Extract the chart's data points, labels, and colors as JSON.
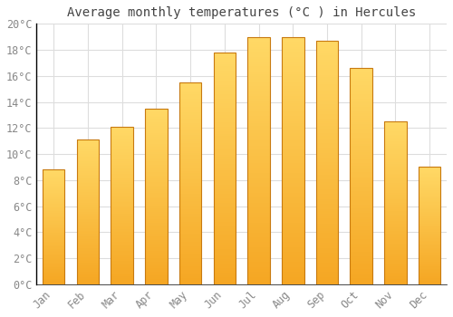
{
  "title": "Average monthly temperatures (°C ) in Hercules",
  "months": [
    "Jan",
    "Feb",
    "Mar",
    "Apr",
    "May",
    "Jun",
    "Jul",
    "Aug",
    "Sep",
    "Oct",
    "Nov",
    "Dec"
  ],
  "values": [
    8.8,
    11.1,
    12.1,
    13.5,
    15.5,
    17.8,
    19.0,
    19.0,
    18.7,
    16.6,
    12.5,
    9.0
  ],
  "bar_color_bottom": "#F5A623",
  "bar_color_top": "#FFD966",
  "bar_edge_color": "#C87A10",
  "background_color": "#FFFFFF",
  "plot_bg_color": "#FFFFFF",
  "grid_color": "#DDDDDD",
  "tick_label_color": "#888888",
  "title_color": "#444444",
  "axis_color": "#000000",
  "ylim": [
    0,
    20
  ],
  "ytick_step": 2,
  "title_fontsize": 10,
  "tick_fontsize": 8.5,
  "bar_width": 0.65
}
